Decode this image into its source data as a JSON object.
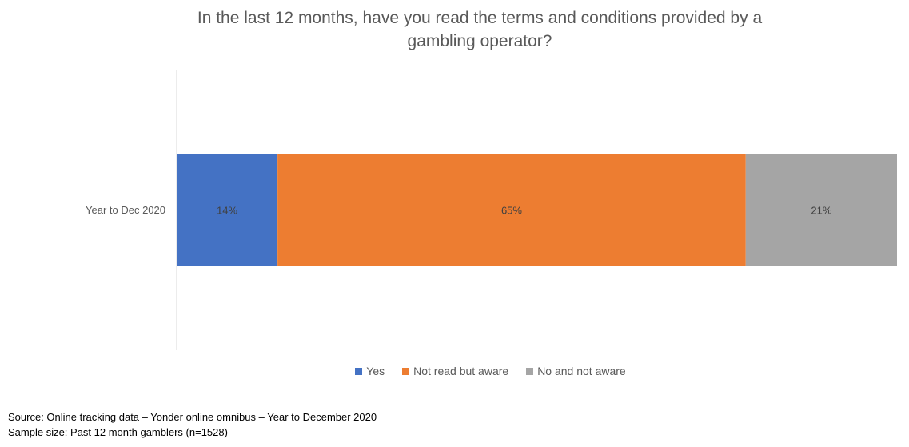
{
  "chart_data": {
    "type": "bar",
    "orientation": "horizontal",
    "stacked": true,
    "title_lines": [
      "In the last 12 months, have you read the terms and conditions provided by a",
      "gambling operator?"
    ],
    "categories": [
      "Year to Dec 2020"
    ],
    "series": [
      {
        "name": "Yes",
        "values": [
          14
        ],
        "label": "14%",
        "color": "#4472C4"
      },
      {
        "name": "Not read but aware",
        "values": [
          65
        ],
        "label": "65%",
        "color": "#ED7D31"
      },
      {
        "name": "No and not aware",
        "values": [
          21
        ],
        "label": "21%",
        "color": "#A5A5A5"
      }
    ],
    "xlim": [
      0,
      100
    ],
    "grid": false,
    "legend_position": "bottom"
  },
  "footer": {
    "source": "Source: Online tracking data – Yonder online omnibus – Year to December 2020",
    "sample": "Sample size: Past 12 month gamblers (n=1528)"
  }
}
